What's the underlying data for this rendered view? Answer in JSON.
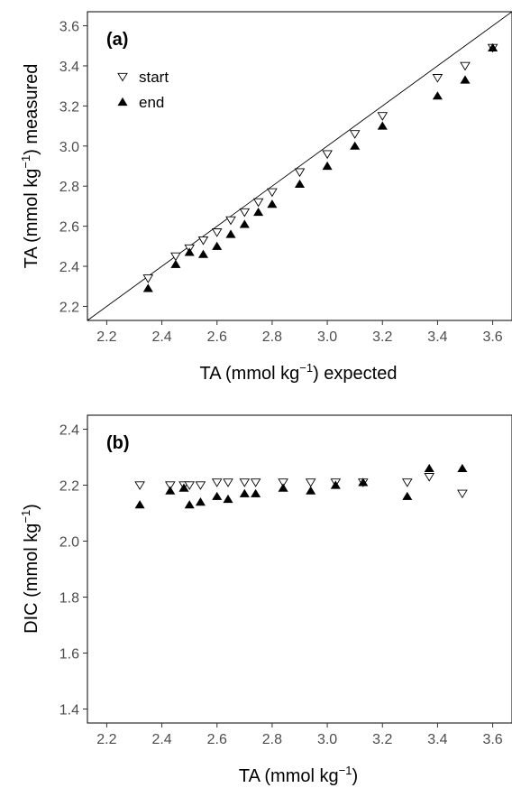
{
  "chart_data": [
    {
      "type": "scatter",
      "panel_tag": "(a)",
      "xlabel": {
        "main": "TA (mmol kg",
        "sup": "−1",
        "tail": ") expected"
      },
      "ylabel": {
        "main": "TA (mmol kg",
        "sup": "−1",
        "tail": ") measured"
      },
      "xlim": [
        2.13,
        3.67
      ],
      "ylim": [
        2.13,
        3.67
      ],
      "x_ticks": [
        "2.2",
        "2.4",
        "2.6",
        "2.8",
        "3.0",
        "3.2",
        "3.4",
        "3.6"
      ],
      "y_ticks": [
        "2.2",
        "2.4",
        "2.6",
        "2.8",
        "3.0",
        "3.2",
        "3.4",
        "3.6"
      ],
      "reference_line": "1:1",
      "grid": false,
      "legend_position": "top-left",
      "series": [
        {
          "name": "start",
          "marker": "open-down-triangle",
          "points": [
            [
              2.35,
              2.34
            ],
            [
              2.45,
              2.45
            ],
            [
              2.5,
              2.49
            ],
            [
              2.55,
              2.53
            ],
            [
              2.6,
              2.57
            ],
            [
              2.65,
              2.63
            ],
            [
              2.7,
              2.67
            ],
            [
              2.75,
              2.72
            ],
            [
              2.8,
              2.77
            ],
            [
              2.9,
              2.87
            ],
            [
              3.0,
              2.96
            ],
            [
              3.1,
              3.06
            ],
            [
              3.2,
              3.15
            ],
            [
              3.4,
              3.34
            ],
            [
              3.5,
              3.4
            ],
            [
              3.6,
              3.49
            ]
          ]
        },
        {
          "name": "end",
          "marker": "filled-up-triangle",
          "points": [
            [
              2.35,
              2.29
            ],
            [
              2.45,
              2.41
            ],
            [
              2.5,
              2.47
            ],
            [
              2.55,
              2.46
            ],
            [
              2.6,
              2.5
            ],
            [
              2.65,
              2.56
            ],
            [
              2.7,
              2.61
            ],
            [
              2.75,
              2.67
            ],
            [
              2.8,
              2.71
            ],
            [
              2.9,
              2.81
            ],
            [
              3.0,
              2.9
            ],
            [
              3.1,
              3.0
            ],
            [
              3.2,
              3.1
            ],
            [
              3.4,
              3.25
            ],
            [
              3.5,
              3.33
            ],
            [
              3.6,
              3.49
            ]
          ]
        }
      ]
    },
    {
      "type": "scatter",
      "panel_tag": "(b)",
      "xlabel": {
        "main": "TA (mmol kg",
        "sup": "−1",
        "tail": ")"
      },
      "ylabel": {
        "main": "DIC (mmol kg",
        "sup": "−1",
        "tail": ")"
      },
      "xlim": [
        2.13,
        3.67
      ],
      "ylim": [
        1.35,
        2.45
      ],
      "x_ticks": [
        "2.2",
        "2.4",
        "2.6",
        "2.8",
        "3.0",
        "3.2",
        "3.4",
        "3.6"
      ],
      "y_ticks": [
        "1.4",
        "1.6",
        "1.8",
        "2.0",
        "2.2",
        "2.4"
      ],
      "grid": false,
      "series": [
        {
          "marker": "open-down-triangle",
          "points": [
            [
              2.32,
              2.2
            ],
            [
              2.43,
              2.2
            ],
            [
              2.48,
              2.2
            ],
            [
              2.5,
              2.2
            ],
            [
              2.54,
              2.2
            ],
            [
              2.6,
              2.21
            ],
            [
              2.64,
              2.21
            ],
            [
              2.7,
              2.21
            ],
            [
              2.74,
              2.21
            ],
            [
              2.84,
              2.21
            ],
            [
              2.94,
              2.21
            ],
            [
              3.03,
              2.21
            ],
            [
              3.13,
              2.21
            ],
            [
              3.29,
              2.21
            ],
            [
              3.37,
              2.23
            ],
            [
              3.49,
              2.17
            ]
          ]
        },
        {
          "marker": "filled-up-triangle",
          "points": [
            [
              2.32,
              2.13
            ],
            [
              2.43,
              2.18
            ],
            [
              2.48,
              2.19
            ],
            [
              2.5,
              2.13
            ],
            [
              2.54,
              2.14
            ],
            [
              2.6,
              2.16
            ],
            [
              2.64,
              2.15
            ],
            [
              2.7,
              2.17
            ],
            [
              2.74,
              2.17
            ],
            [
              2.84,
              2.19
            ],
            [
              2.94,
              2.18
            ],
            [
              3.03,
              2.2
            ],
            [
              3.13,
              2.21
            ],
            [
              3.29,
              2.16
            ],
            [
              3.37,
              2.26
            ],
            [
              3.49,
              2.26
            ]
          ]
        }
      ]
    }
  ]
}
